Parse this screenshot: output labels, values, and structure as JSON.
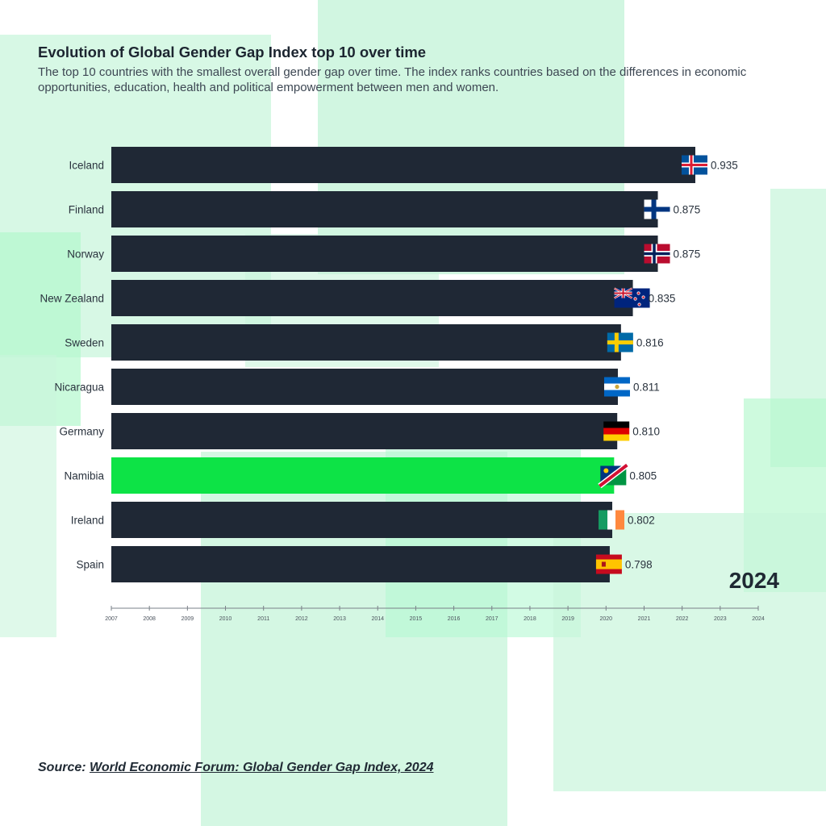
{
  "header": {
    "title": "Evolution of Global Gender Gap Index top 10 over time",
    "subtitle": "The top 10 countries with the smallest overall gender gap over time. The index ranks countries based on the differences in economic opportunities, education, health and political empowerment between men and women."
  },
  "current_year": "2024",
  "source": {
    "prefix": "Source:",
    "link_text": "World Economic Forum: Global Gender Gap Index, 2024"
  },
  "colors": {
    "bar": "#1f2835",
    "highlight": "#0de346",
    "background_block": "#c9f5dc",
    "axis": "#7a8088",
    "text": "#1f2933"
  },
  "chart_data": {
    "type": "bar",
    "orientation": "horizontal",
    "title": "Evolution of Global Gender Gap Index top 10 over time",
    "categories": [
      "Iceland",
      "Finland",
      "Norway",
      "New Zealand",
      "Sweden",
      "Nicaragua",
      "Germany",
      "Namibia",
      "Ireland",
      "Spain"
    ],
    "values": [
      0.935,
      0.875,
      0.875,
      0.835,
      0.816,
      0.811,
      0.81,
      0.805,
      0.802,
      0.798
    ],
    "value_labels": [
      "0.935",
      "0.875",
      "0.875",
      "0.835",
      "0.816",
      "0.811",
      "0.810",
      "0.805",
      "0.802",
      "0.798"
    ],
    "flags": [
      "iceland-flag",
      "finland-flag",
      "norway-flag",
      "new-zealand-flag",
      "sweden-flag",
      "nicaragua-flag",
      "germany-flag",
      "namibia-flag",
      "ireland-flag",
      "spain-flag"
    ],
    "highlight": "Namibia",
    "xlim": [
      0,
      0.935
    ],
    "timeline_ticks": [
      "2007",
      "2008",
      "2009",
      "2010",
      "2011",
      "2012",
      "2013",
      "2014",
      "2015",
      "2016",
      "2017",
      "2018",
      "2019",
      "2020",
      "2021",
      "2022",
      "2023",
      "2024"
    ],
    "current_year": "2024"
  }
}
